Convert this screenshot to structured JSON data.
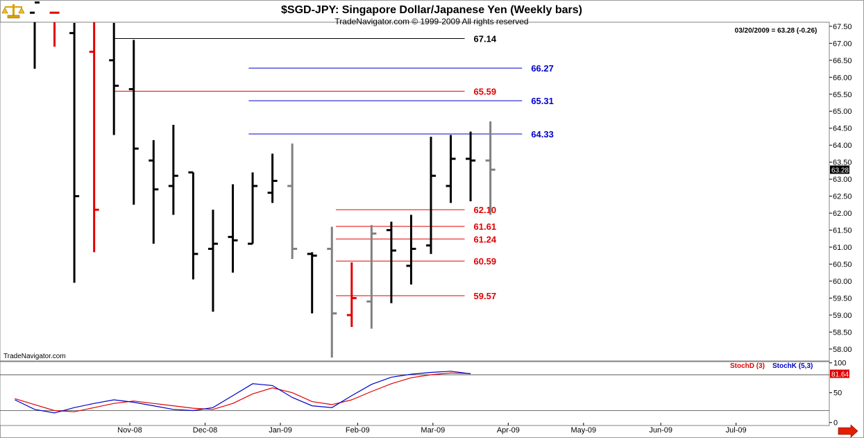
{
  "header": {
    "title": "$SGD-JPY:  Singapore Dollar/Japanese Yen  (Weekly bars)",
    "subtitle": "TradeNavigator.com © 1999-2009 All rights reserved"
  },
  "info": {
    "last_quote": "03/20/2009 = 63.28 (-0.26)",
    "watermark": "TradeNavigator.com",
    "last_price_tag": "63.28",
    "stoch_tag": "81.64"
  },
  "colors": {
    "up_bar": "#000000",
    "down_bar": "#e00000",
    "inside_bar": "#808080",
    "fib_red": "#e00000",
    "fib_blue": "#0000c8",
    "stoch_d": "#e00000",
    "stoch_k": "#0000c8",
    "tag_bg": "#000000",
    "stoch_tag_bg": "#e00000"
  },
  "icons": {
    "logo": "scales-icon",
    "scroll": "right-arrow-icon"
  },
  "chart_data": [
    {
      "type": "ohlc",
      "title": "$SGD-JPY:  Singapore Dollar/Japanese Yen  (Weekly bars)",
      "ylim": [
        57.65,
        67.62
      ],
      "ytick_values": [
        58.0,
        58.5,
        59.0,
        59.5,
        60.0,
        60.5,
        61.0,
        61.5,
        62.0,
        62.5,
        63.0,
        63.5,
        64.0,
        64.5,
        65.0,
        65.5,
        66.0,
        66.5,
        67.0,
        67.5
      ],
      "ytick_labels": [
        "58.00",
        "58.50",
        "59.00",
        "59.50",
        "60.00",
        "60.50",
        "61.00",
        "61.50",
        "62.00",
        "62.50",
        "63.00",
        "63.50",
        "64.00",
        "64.50",
        "65.00",
        "65.50",
        "66.00",
        "66.50",
        "67.00",
        "67.50"
      ],
      "x_labels": [
        "Nov-08",
        "Dec-08",
        "Jan-09",
        "Feb-09",
        "Mar-09",
        "Apr-09",
        "May-09",
        "Jun-09",
        "Jul-09"
      ],
      "x_label_week_index": [
        4.8,
        8.6,
        12.4,
        16.3,
        20.1,
        23.9,
        27.7,
        31.6,
        35.4
      ],
      "bars": [
        {
          "week": 0,
          "open": 67.9,
          "high": 68.5,
          "low": 66.25,
          "close": 68.2,
          "color": "black"
        },
        {
          "week": 1,
          "open": 67.9,
          "high": 68.4,
          "low": 66.9,
          "close": 67.9,
          "color": "red"
        },
        {
          "week": 2,
          "open": 67.3,
          "high": 67.6,
          "low": 59.95,
          "close": 62.5,
          "color": "black"
        },
        {
          "week": 3,
          "open": 66.75,
          "high": 67.7,
          "low": 60.85,
          "close": 62.1,
          "color": "red"
        },
        {
          "week": 4,
          "open": 66.5,
          "high": 67.6,
          "low": 64.3,
          "close": 65.75,
          "color": "black"
        },
        {
          "week": 5,
          "open": 65.65,
          "high": 67.1,
          "low": 62.25,
          "close": 63.9,
          "color": "black"
        },
        {
          "week": 6,
          "open": 63.55,
          "high": 64.15,
          "low": 61.1,
          "close": 62.7,
          "color": "black"
        },
        {
          "week": 7,
          "open": 62.8,
          "high": 64.6,
          "low": 61.95,
          "close": 63.1,
          "color": "black"
        },
        {
          "week": 8,
          "open": 63.2,
          "high": 63.2,
          "low": 60.05,
          "close": 60.8,
          "color": "black"
        },
        {
          "week": 9,
          "open": 60.95,
          "high": 62.1,
          "low": 59.1,
          "close": 61.1,
          "color": "black"
        },
        {
          "week": 10,
          "open": 61.3,
          "high": 62.85,
          "low": 60.25,
          "close": 61.2,
          "color": "black"
        },
        {
          "week": 11,
          "open": 61.1,
          "high": 63.2,
          "low": 61.1,
          "close": 62.8,
          "color": "black"
        },
        {
          "week": 12,
          "open": 62.6,
          "high": 63.75,
          "low": 62.3,
          "close": 62.95,
          "color": "black"
        },
        {
          "week": 13,
          "open": 62.8,
          "high": 64.05,
          "low": 60.65,
          "close": 60.95,
          "color": "gray"
        },
        {
          "week": 14,
          "open": 60.8,
          "high": 60.85,
          "low": 59.05,
          "close": 60.75,
          "color": "black"
        },
        {
          "week": 15,
          "open": 60.95,
          "high": 61.6,
          "low": 57.75,
          "close": 59.05,
          "color": "gray"
        },
        {
          "week": 16,
          "open": 59.0,
          "high": 60.55,
          "low": 58.65,
          "close": 59.5,
          "color": "red"
        },
        {
          "week": 17,
          "open": 59.4,
          "high": 61.65,
          "low": 58.6,
          "close": 61.4,
          "color": "gray"
        },
        {
          "week": 18,
          "open": 61.5,
          "high": 61.75,
          "low": 59.35,
          "close": 60.9,
          "color": "black"
        },
        {
          "week": 19,
          "open": 60.45,
          "high": 61.95,
          "low": 59.9,
          "close": 60.95,
          "color": "black"
        },
        {
          "week": 20,
          "open": 61.05,
          "high": 64.25,
          "low": 60.8,
          "close": 63.1,
          "color": "black"
        },
        {
          "week": 21,
          "open": 62.8,
          "high": 64.3,
          "low": 62.3,
          "close": 63.6,
          "color": "black"
        },
        {
          "week": 22,
          "open": 63.6,
          "high": 64.4,
          "low": 62.35,
          "close": 63.55,
          "color": "black"
        },
        {
          "week": 23,
          "open": 63.55,
          "high": 64.7,
          "low": 61.95,
          "close": 63.28,
          "color": "gray"
        }
      ],
      "levels": [
        {
          "value": 67.14,
          "label": "67.14",
          "color": "black",
          "from_week": 4.0,
          "to_week": 21.7
        },
        {
          "value": 66.27,
          "label": "66.27",
          "color": "blue",
          "from_week": 10.8,
          "to_week": 24.6
        },
        {
          "value": 65.59,
          "label": "65.59",
          "color": "red",
          "from_week": 4.0,
          "to_week": 21.7
        },
        {
          "value": 65.31,
          "label": "65.31",
          "color": "blue",
          "from_week": 10.8,
          "to_week": 24.6
        },
        {
          "value": 64.33,
          "label": "64.33",
          "color": "blue",
          "from_week": 10.8,
          "to_week": 24.6
        },
        {
          "value": 62.1,
          "label": "62.10",
          "color": "red",
          "from_week": 15.2,
          "to_week": 21.7
        },
        {
          "value": 61.61,
          "label": "61.61",
          "color": "red",
          "from_week": 15.2,
          "to_week": 21.7
        },
        {
          "value": 61.24,
          "label": "61.24",
          "color": "red",
          "from_week": 15.2,
          "to_week": 21.7
        },
        {
          "value": 60.59,
          "label": "60.59",
          "color": "red",
          "from_week": 15.2,
          "to_week": 21.7
        },
        {
          "value": 59.57,
          "label": "59.57",
          "color": "red",
          "from_week": 15.2,
          "to_week": 21.7
        }
      ]
    },
    {
      "type": "line",
      "ylim": [
        -5,
        102
      ],
      "ytick_values": [
        0,
        50,
        100
      ],
      "ytick_labels": [
        "0",
        "50",
        "100"
      ],
      "reference_lines": [
        80,
        20
      ],
      "series": [
        {
          "name": "StochD (3)",
          "color": "red",
          "x": [
            0,
            1,
            2,
            3,
            4,
            5,
            6,
            7,
            8,
            9,
            10,
            11,
            12,
            13,
            14,
            15,
            16,
            17,
            18,
            19,
            20,
            21,
            22,
            23
          ],
          "y": [
            40,
            30,
            20,
            18,
            25,
            32,
            36,
            32,
            28,
            24,
            22,
            32,
            48,
            58,
            50,
            35,
            30,
            38,
            52,
            65,
            75,
            80,
            83,
            82
          ]
        },
        {
          "name": "StochK (5,3)",
          "color": "blue",
          "x": [
            0,
            1,
            2,
            3,
            4,
            5,
            6,
            7,
            8,
            9,
            10,
            11,
            12,
            13,
            14,
            15,
            16,
            17,
            18,
            19,
            20,
            21,
            22,
            23
          ],
          "y": [
            38,
            22,
            16,
            25,
            32,
            38,
            34,
            28,
            22,
            20,
            25,
            45,
            65,
            62,
            42,
            28,
            25,
            45,
            64,
            76,
            81,
            84,
            86,
            81.64
          ]
        }
      ]
    }
  ]
}
